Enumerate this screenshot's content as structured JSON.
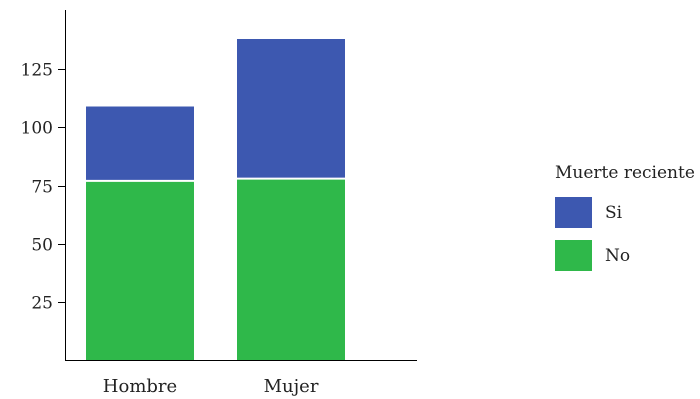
{
  "chart_data": {
    "type": "bar",
    "stacked": true,
    "categories": [
      "Hombre",
      "Mujer"
    ],
    "series": [
      {
        "name": "No",
        "values": [
          77,
          78
        ],
        "color": "#2fb84a"
      },
      {
        "name": "Si",
        "values": [
          32,
          60
        ],
        "color": "#3d58b0"
      }
    ],
    "yticks": [
      25,
      50,
      75,
      100,
      125
    ],
    "ylim": [
      0,
      141
    ],
    "title": "",
    "xlabel": "",
    "ylabel": "",
    "grid": false,
    "legend": {
      "title": "Muerte reciente",
      "placement": "right",
      "entries": [
        "Si",
        "No"
      ]
    }
  }
}
